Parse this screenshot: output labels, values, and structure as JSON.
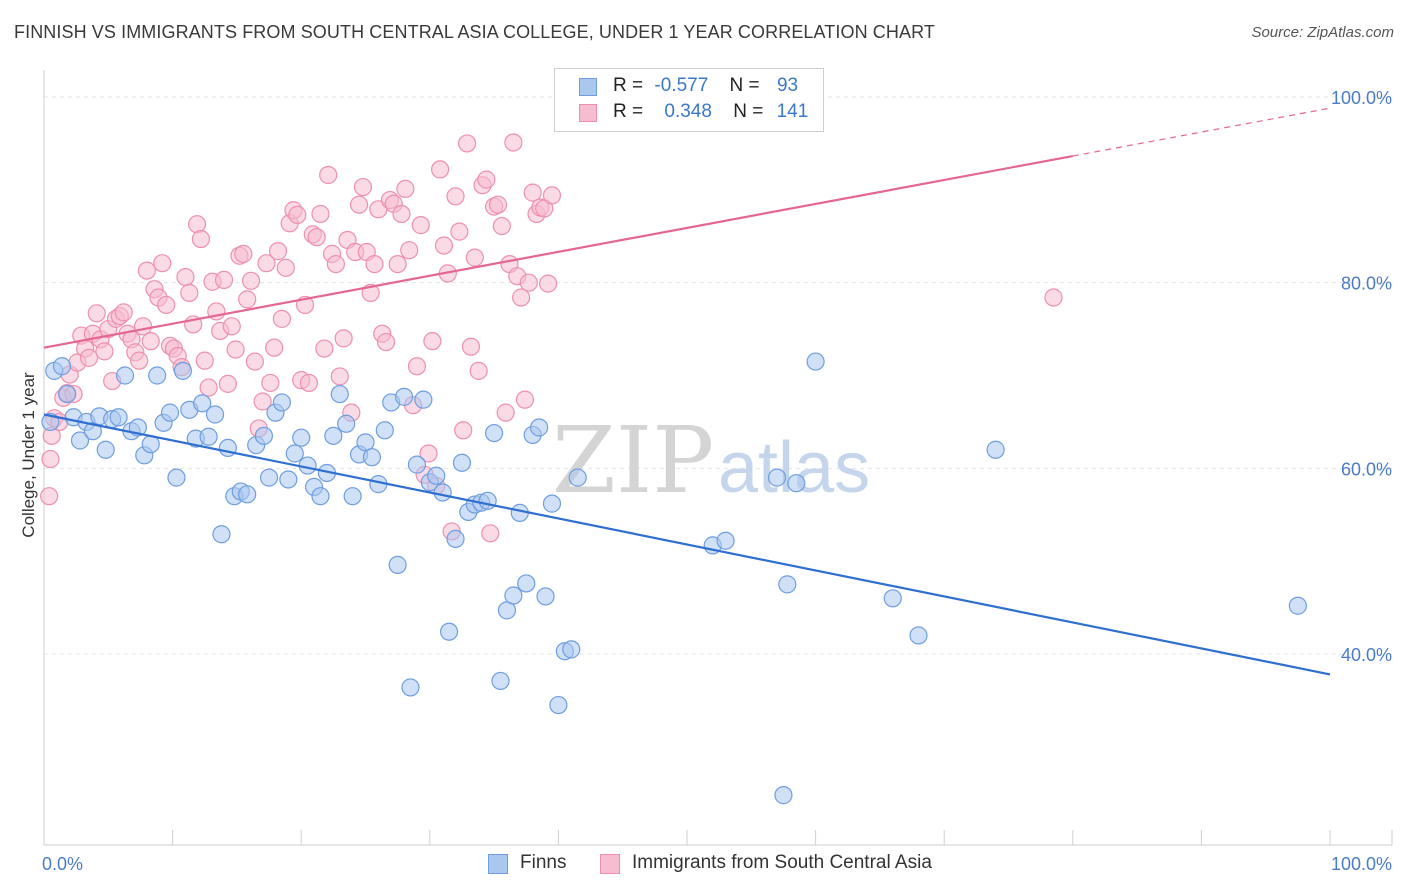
{
  "title": "FINNISH VS IMMIGRANTS FROM SOUTH CENTRAL ASIA COLLEGE, UNDER 1 YEAR CORRELATION CHART",
  "source": "Source: ZipAtlas.com",
  "watermark": {
    "zip": "ZIP",
    "atlas": "atlas"
  },
  "legend": {
    "r_label": "R =",
    "n_label": "N =",
    "series": [
      {
        "name": "Finns",
        "r": "-0.577",
        "n": "93"
      },
      {
        "name": "Immigrants from South Central Asia",
        "r": "0.348",
        "n": "141"
      }
    ]
  },
  "colors": {
    "finns_fill": "#aac7ee",
    "finns_stroke": "#6e9ee0",
    "finns_line": "#2e6fd0",
    "immig_fill": "#f6bcd0",
    "immig_stroke": "#ee8fb0",
    "immig_line": "#e5668f",
    "tick_text": "#4a7cc6",
    "grid": "#e4e4e4"
  },
  "chart_data": {
    "type": "scatter",
    "title": "FINNISH VS IMMIGRANTS FROM SOUTH CENTRAL ASIA COLLEGE, UNDER 1 YEAR CORRELATION CHART",
    "xlabel": "",
    "ylabel": "College, Under 1 year",
    "xlim": [
      0,
      100
    ],
    "ylim": [
      18,
      100
    ],
    "x_tick_labels": [
      "0.0%",
      "100.0%"
    ],
    "y_ticks": [
      {
        "value": 40,
        "label": "40.0%"
      },
      {
        "value": 60,
        "label": "60.0%"
      },
      {
        "value": 80,
        "label": "80.0%"
      },
      {
        "value": 100,
        "label": "100.0%"
      }
    ],
    "grid": true,
    "legend_position": "top-center",
    "series": [
      {
        "name": "Finns",
        "r": -0.577,
        "n": 93,
        "trend": {
          "x0": 0,
          "y0": 65.8,
          "x1": 100,
          "y1": 37.8,
          "dashed_from": null
        },
        "points": [
          [
            0.5,
            65
          ],
          [
            0.8,
            70.5
          ],
          [
            1.4,
            71
          ],
          [
            1.8,
            68
          ],
          [
            2.3,
            65.5
          ],
          [
            2.8,
            63
          ],
          [
            3.3,
            65
          ],
          [
            3.8,
            64
          ],
          [
            4.3,
            65.6
          ],
          [
            4.8,
            62
          ],
          [
            5.3,
            65.3
          ],
          [
            5.8,
            65.5
          ],
          [
            6.3,
            70
          ],
          [
            6.8,
            64
          ],
          [
            7.3,
            64.4
          ],
          [
            7.8,
            61.4
          ],
          [
            8.3,
            62.6
          ],
          [
            8.8,
            70
          ],
          [
            9.3,
            64.9
          ],
          [
            9.8,
            66
          ],
          [
            10.3,
            59
          ],
          [
            10.8,
            70.5
          ],
          [
            11.3,
            66.3
          ],
          [
            11.8,
            63.2
          ],
          [
            12.3,
            67
          ],
          [
            12.8,
            63.4
          ],
          [
            13.3,
            65.8
          ],
          [
            13.8,
            52.9
          ],
          [
            14.3,
            62.2
          ],
          [
            14.8,
            57
          ],
          [
            15.3,
            57.5
          ],
          [
            15.8,
            57.2
          ],
          [
            16.5,
            62.5
          ],
          [
            17.1,
            63.5
          ],
          [
            17.5,
            59
          ],
          [
            18,
            66
          ],
          [
            18.5,
            67.1
          ],
          [
            19,
            58.8
          ],
          [
            19.5,
            61.6
          ],
          [
            20,
            63.3
          ],
          [
            20.5,
            60.3
          ],
          [
            21,
            58
          ],
          [
            21.5,
            57
          ],
          [
            22,
            59.5
          ],
          [
            22.5,
            63.5
          ],
          [
            23,
            68
          ],
          [
            23.5,
            64.8
          ],
          [
            24,
            57
          ],
          [
            24.5,
            61.5
          ],
          [
            25,
            62.8
          ],
          [
            25.5,
            61.2
          ],
          [
            26,
            58.3
          ],
          [
            26.5,
            64.1
          ],
          [
            27,
            67.1
          ],
          [
            27.5,
            49.6
          ],
          [
            28,
            67.7
          ],
          [
            28.5,
            36.4
          ],
          [
            29,
            60.4
          ],
          [
            29.5,
            67.4
          ],
          [
            30,
            58.5
          ],
          [
            30.5,
            59.2
          ],
          [
            31,
            57.4
          ],
          [
            31.5,
            42.4
          ],
          [
            32,
            52.4
          ],
          [
            32.5,
            60.6
          ],
          [
            33,
            55.3
          ],
          [
            33.5,
            56.1
          ],
          [
            34,
            56.3
          ],
          [
            34.5,
            56.5
          ],
          [
            35,
            63.8
          ],
          [
            35.5,
            37.1
          ],
          [
            36,
            44.7
          ],
          [
            36.5,
            46.3
          ],
          [
            37,
            55.2
          ],
          [
            37.5,
            47.6
          ],
          [
            38,
            63.6
          ],
          [
            38.5,
            64.4
          ],
          [
            39,
            46.2
          ],
          [
            39.5,
            56.2
          ],
          [
            40,
            34.5
          ],
          [
            40.5,
            40.3
          ],
          [
            41,
            40.5
          ],
          [
            41.5,
            59
          ],
          [
            52,
            51.7
          ],
          [
            53,
            52.2
          ],
          [
            57,
            59
          ],
          [
            57.5,
            24.8
          ],
          [
            57.8,
            47.5
          ],
          [
            58.5,
            58.4
          ],
          [
            60,
            71.5
          ],
          [
            66,
            46
          ],
          [
            68,
            42
          ],
          [
            74,
            62
          ],
          [
            97.5,
            45.2
          ]
        ]
      },
      {
        "name": "Immigrants from South Central Asia",
        "r": 0.348,
        "n": 141,
        "trend": {
          "x0": 0,
          "y0": 73,
          "x1": 100,
          "y1": 98.8,
          "dashed_from": 80
        },
        "points": [
          [
            0.4,
            57
          ],
          [
            0.5,
            61
          ],
          [
            0.6,
            63.5
          ],
          [
            0.8,
            65.4
          ],
          [
            1.2,
            65
          ],
          [
            1.5,
            67.6
          ],
          [
            1.8,
            68.1
          ],
          [
            2,
            70.1
          ],
          [
            2.3,
            68
          ],
          [
            2.6,
            71.4
          ],
          [
            2.9,
            74.3
          ],
          [
            3.2,
            72.9
          ],
          [
            3.5,
            71.9
          ],
          [
            3.8,
            74.5
          ],
          [
            4.1,
            76.7
          ],
          [
            4.4,
            73.9
          ],
          [
            4.7,
            72.6
          ],
          [
            5,
            75
          ],
          [
            5.3,
            69.4
          ],
          [
            5.6,
            76.1
          ],
          [
            5.9,
            76.4
          ],
          [
            6.2,
            76.8
          ],
          [
            6.5,
            74.5
          ],
          [
            6.8,
            73.9
          ],
          [
            7.1,
            72.5
          ],
          [
            7.4,
            71.6
          ],
          [
            7.7,
            75.3
          ],
          [
            8,
            81.3
          ],
          [
            8.3,
            73.7
          ],
          [
            8.6,
            79.3
          ],
          [
            8.9,
            78.4
          ],
          [
            9.2,
            82.1
          ],
          [
            9.5,
            77.6
          ],
          [
            9.8,
            73.2
          ],
          [
            10.1,
            72.9
          ],
          [
            10.4,
            72.1
          ],
          [
            10.7,
            70.9
          ],
          [
            11,
            80.6
          ],
          [
            11.3,
            78.9
          ],
          [
            11.6,
            75.5
          ],
          [
            11.9,
            86.3
          ],
          [
            12.2,
            84.7
          ],
          [
            12.5,
            71.6
          ],
          [
            12.8,
            68.7
          ],
          [
            13.1,
            80.1
          ],
          [
            13.4,
            76.9
          ],
          [
            13.7,
            74.8
          ],
          [
            14,
            80.3
          ],
          [
            14.3,
            69.1
          ],
          [
            14.6,
            75.3
          ],
          [
            14.9,
            72.8
          ],
          [
            15.2,
            82.9
          ],
          [
            15.5,
            83.1
          ],
          [
            15.8,
            78.2
          ],
          [
            16.1,
            80.2
          ],
          [
            16.4,
            71.5
          ],
          [
            16.7,
            64.3
          ],
          [
            17,
            67.2
          ],
          [
            17.3,
            82.1
          ],
          [
            17.6,
            69.2
          ],
          [
            17.9,
            73
          ],
          [
            18.2,
            83.4
          ],
          [
            18.5,
            76.1
          ],
          [
            18.8,
            81.6
          ],
          [
            19.1,
            86.4
          ],
          [
            19.4,
            87.8
          ],
          [
            19.7,
            87.3
          ],
          [
            20,
            69.5
          ],
          [
            20.3,
            77.6
          ],
          [
            20.6,
            69.2
          ],
          [
            20.9,
            85.2
          ],
          [
            21.2,
            84.9
          ],
          [
            21.5,
            87.4
          ],
          [
            21.8,
            72.9
          ],
          [
            22.1,
            91.6
          ],
          [
            22.4,
            83.1
          ],
          [
            22.7,
            82
          ],
          [
            23,
            69.9
          ],
          [
            23.3,
            74
          ],
          [
            23.6,
            84.6
          ],
          [
            23.9,
            66
          ],
          [
            24.2,
            83.3
          ],
          [
            24.5,
            88.4
          ],
          [
            24.8,
            90.3
          ],
          [
            25.1,
            83.3
          ],
          [
            25.4,
            78.9
          ],
          [
            25.7,
            82
          ],
          [
            26,
            87.9
          ],
          [
            26.3,
            74.5
          ],
          [
            26.6,
            73.6
          ],
          [
            26.9,
            88.9
          ],
          [
            27.2,
            88.5
          ],
          [
            27.5,
            82
          ],
          [
            27.8,
            87.4
          ],
          [
            28.1,
            90.1
          ],
          [
            28.4,
            83.5
          ],
          [
            28.7,
            66.8
          ],
          [
            29,
            71
          ],
          [
            29.3,
            86.2
          ],
          [
            29.6,
            59.3
          ],
          [
            29.9,
            61.6
          ],
          [
            30.2,
            73.7
          ],
          [
            30.5,
            58.1
          ],
          [
            30.8,
            92.2
          ],
          [
            31.1,
            84
          ],
          [
            31.4,
            81
          ],
          [
            31.7,
            53.2
          ],
          [
            32,
            89.3
          ],
          [
            32.3,
            85.5
          ],
          [
            32.6,
            64.1
          ],
          [
            32.9,
            95
          ],
          [
            33.2,
            73.1
          ],
          [
            33.5,
            82.7
          ],
          [
            33.8,
            70.5
          ],
          [
            34.1,
            90.5
          ],
          [
            34.4,
            91.1
          ],
          [
            34.7,
            53
          ],
          [
            35,
            88.2
          ],
          [
            35.3,
            88.4
          ],
          [
            35.6,
            86.1
          ],
          [
            35.9,
            66
          ],
          [
            36.2,
            82
          ],
          [
            36.5,
            95.1
          ],
          [
            36.8,
            80.7
          ],
          [
            37.1,
            78.4
          ],
          [
            37.4,
            67.4
          ],
          [
            37.7,
            80
          ],
          [
            38,
            89.7
          ],
          [
            38.3,
            87.4
          ],
          [
            38.6,
            88.1
          ],
          [
            38.9,
            88
          ],
          [
            39.2,
            79.9
          ],
          [
            39.5,
            89.4
          ],
          [
            78.5,
            78.4
          ]
        ]
      }
    ]
  }
}
